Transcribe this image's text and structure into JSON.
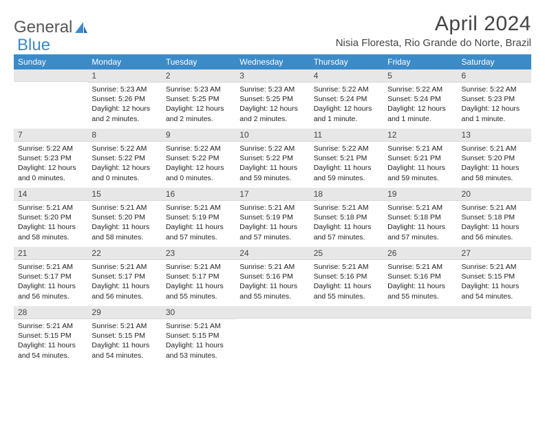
{
  "brand": {
    "word1": "General",
    "word2": "Blue"
  },
  "title": "April 2024",
  "location": "Nisia Floresta, Rio Grande do Norte, Brazil",
  "colors": {
    "header_bg": "#3b8bc9",
    "header_text": "#ffffff",
    "daynum_bg": "#e7e7e7",
    "text": "#222222",
    "brand_gray": "#555555",
    "brand_blue": "#3b8bc9"
  },
  "weekdays": [
    "Sunday",
    "Monday",
    "Tuesday",
    "Wednesday",
    "Thursday",
    "Friday",
    "Saturday"
  ],
  "weeks": [
    [
      null,
      {
        "num": "1",
        "sunrise": "Sunrise: 5:23 AM",
        "sunset": "Sunset: 5:26 PM",
        "daylight1": "Daylight: 12 hours",
        "daylight2": "and 2 minutes."
      },
      {
        "num": "2",
        "sunrise": "Sunrise: 5:23 AM",
        "sunset": "Sunset: 5:25 PM",
        "daylight1": "Daylight: 12 hours",
        "daylight2": "and 2 minutes."
      },
      {
        "num": "3",
        "sunrise": "Sunrise: 5:23 AM",
        "sunset": "Sunset: 5:25 PM",
        "daylight1": "Daylight: 12 hours",
        "daylight2": "and 2 minutes."
      },
      {
        "num": "4",
        "sunrise": "Sunrise: 5:22 AM",
        "sunset": "Sunset: 5:24 PM",
        "daylight1": "Daylight: 12 hours",
        "daylight2": "and 1 minute."
      },
      {
        "num": "5",
        "sunrise": "Sunrise: 5:22 AM",
        "sunset": "Sunset: 5:24 PM",
        "daylight1": "Daylight: 12 hours",
        "daylight2": "and 1 minute."
      },
      {
        "num": "6",
        "sunrise": "Sunrise: 5:22 AM",
        "sunset": "Sunset: 5:23 PM",
        "daylight1": "Daylight: 12 hours",
        "daylight2": "and 1 minute."
      }
    ],
    [
      {
        "num": "7",
        "sunrise": "Sunrise: 5:22 AM",
        "sunset": "Sunset: 5:23 PM",
        "daylight1": "Daylight: 12 hours",
        "daylight2": "and 0 minutes."
      },
      {
        "num": "8",
        "sunrise": "Sunrise: 5:22 AM",
        "sunset": "Sunset: 5:22 PM",
        "daylight1": "Daylight: 12 hours",
        "daylight2": "and 0 minutes."
      },
      {
        "num": "9",
        "sunrise": "Sunrise: 5:22 AM",
        "sunset": "Sunset: 5:22 PM",
        "daylight1": "Daylight: 12 hours",
        "daylight2": "and 0 minutes."
      },
      {
        "num": "10",
        "sunrise": "Sunrise: 5:22 AM",
        "sunset": "Sunset: 5:22 PM",
        "daylight1": "Daylight: 11 hours",
        "daylight2": "and 59 minutes."
      },
      {
        "num": "11",
        "sunrise": "Sunrise: 5:22 AM",
        "sunset": "Sunset: 5:21 PM",
        "daylight1": "Daylight: 11 hours",
        "daylight2": "and 59 minutes."
      },
      {
        "num": "12",
        "sunrise": "Sunrise: 5:21 AM",
        "sunset": "Sunset: 5:21 PM",
        "daylight1": "Daylight: 11 hours",
        "daylight2": "and 59 minutes."
      },
      {
        "num": "13",
        "sunrise": "Sunrise: 5:21 AM",
        "sunset": "Sunset: 5:20 PM",
        "daylight1": "Daylight: 11 hours",
        "daylight2": "and 58 minutes."
      }
    ],
    [
      {
        "num": "14",
        "sunrise": "Sunrise: 5:21 AM",
        "sunset": "Sunset: 5:20 PM",
        "daylight1": "Daylight: 11 hours",
        "daylight2": "and 58 minutes."
      },
      {
        "num": "15",
        "sunrise": "Sunrise: 5:21 AM",
        "sunset": "Sunset: 5:20 PM",
        "daylight1": "Daylight: 11 hours",
        "daylight2": "and 58 minutes."
      },
      {
        "num": "16",
        "sunrise": "Sunrise: 5:21 AM",
        "sunset": "Sunset: 5:19 PM",
        "daylight1": "Daylight: 11 hours",
        "daylight2": "and 57 minutes."
      },
      {
        "num": "17",
        "sunrise": "Sunrise: 5:21 AM",
        "sunset": "Sunset: 5:19 PM",
        "daylight1": "Daylight: 11 hours",
        "daylight2": "and 57 minutes."
      },
      {
        "num": "18",
        "sunrise": "Sunrise: 5:21 AM",
        "sunset": "Sunset: 5:18 PM",
        "daylight1": "Daylight: 11 hours",
        "daylight2": "and 57 minutes."
      },
      {
        "num": "19",
        "sunrise": "Sunrise: 5:21 AM",
        "sunset": "Sunset: 5:18 PM",
        "daylight1": "Daylight: 11 hours",
        "daylight2": "and 57 minutes."
      },
      {
        "num": "20",
        "sunrise": "Sunrise: 5:21 AM",
        "sunset": "Sunset: 5:18 PM",
        "daylight1": "Daylight: 11 hours",
        "daylight2": "and 56 minutes."
      }
    ],
    [
      {
        "num": "21",
        "sunrise": "Sunrise: 5:21 AM",
        "sunset": "Sunset: 5:17 PM",
        "daylight1": "Daylight: 11 hours",
        "daylight2": "and 56 minutes."
      },
      {
        "num": "22",
        "sunrise": "Sunrise: 5:21 AM",
        "sunset": "Sunset: 5:17 PM",
        "daylight1": "Daylight: 11 hours",
        "daylight2": "and 56 minutes."
      },
      {
        "num": "23",
        "sunrise": "Sunrise: 5:21 AM",
        "sunset": "Sunset: 5:17 PM",
        "daylight1": "Daylight: 11 hours",
        "daylight2": "and 55 minutes."
      },
      {
        "num": "24",
        "sunrise": "Sunrise: 5:21 AM",
        "sunset": "Sunset: 5:16 PM",
        "daylight1": "Daylight: 11 hours",
        "daylight2": "and 55 minutes."
      },
      {
        "num": "25",
        "sunrise": "Sunrise: 5:21 AM",
        "sunset": "Sunset: 5:16 PM",
        "daylight1": "Daylight: 11 hours",
        "daylight2": "and 55 minutes."
      },
      {
        "num": "26",
        "sunrise": "Sunrise: 5:21 AM",
        "sunset": "Sunset: 5:16 PM",
        "daylight1": "Daylight: 11 hours",
        "daylight2": "and 55 minutes."
      },
      {
        "num": "27",
        "sunrise": "Sunrise: 5:21 AM",
        "sunset": "Sunset: 5:15 PM",
        "daylight1": "Daylight: 11 hours",
        "daylight2": "and 54 minutes."
      }
    ],
    [
      {
        "num": "28",
        "sunrise": "Sunrise: 5:21 AM",
        "sunset": "Sunset: 5:15 PM",
        "daylight1": "Daylight: 11 hours",
        "daylight2": "and 54 minutes."
      },
      {
        "num": "29",
        "sunrise": "Sunrise: 5:21 AM",
        "sunset": "Sunset: 5:15 PM",
        "daylight1": "Daylight: 11 hours",
        "daylight2": "and 54 minutes."
      },
      {
        "num": "30",
        "sunrise": "Sunrise: 5:21 AM",
        "sunset": "Sunset: 5:15 PM",
        "daylight1": "Daylight: 11 hours",
        "daylight2": "and 53 minutes."
      },
      null,
      null,
      null,
      null
    ]
  ]
}
